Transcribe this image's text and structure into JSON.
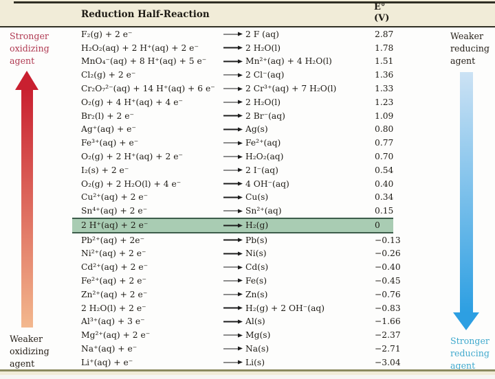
{
  "table": {
    "header": {
      "reaction_col": "Reduction Half-Reaction",
      "e_col_line1": "E°",
      "e_col_line2": "(V)"
    }
  },
  "side_labels": {
    "top_left": "Stronger\noxidizing\nagent",
    "bottom_left": "Weaker\noxidizing\nagent",
    "top_right": "Weaker\nreducing\nagent",
    "bottom_right": "Stronger\nreducing\nagent"
  },
  "icons": {
    "yields_arrow": "long-right-arrow",
    "oxidizing_strength_arrow": "up-arrow-red-gradient",
    "reducing_strength_arrow": "down-arrow-blue-gradient"
  },
  "colors": {
    "text": "#1d1a14",
    "header_bg": "#f1ecd8",
    "rule_dark": "#2f2e23",
    "highlight_row_bg": "#a9ccb3",
    "highlight_row_border": "#3c5c4a",
    "oxidizing_label": "#b03a52",
    "reducing_label": "#3fa9cd",
    "red_arrow_top": "#c92030",
    "red_arrow_bottom": "#f3b88e",
    "blue_arrow_top": "#cce2f4",
    "blue_arrow_bottom": "#2d9fe2",
    "bottom_rule": "#8b8a5f"
  },
  "chart_data": {
    "type": "table",
    "columns": [
      "Reduction Half-Reaction",
      "E° (V)"
    ],
    "rows": [
      {
        "reactant": "F₂(g) + 2 e⁻",
        "product": "2 F (aq)",
        "e_volts": "2.87"
      },
      {
        "reactant": "H₂O₂(aq) + 2 H⁺(aq) + 2 e⁻",
        "product": "2 H₂O(l)",
        "e_volts": "1.78"
      },
      {
        "reactant": "MnO₄⁻(aq) + 8 H⁺(aq) + 5 e⁻",
        "product": "Mn²⁺(aq) + 4 H₂O(l)",
        "e_volts": "1.51"
      },
      {
        "reactant": "Cl₂(g) + 2 e⁻",
        "product": "2 Cl⁻(aq)",
        "e_volts": "1.36"
      },
      {
        "reactant": "Cr₂O₇²⁻(aq) + 14 H⁺(aq) + 6 e⁻",
        "product": "2 Cr³⁺(aq) + 7 H₂O(l)",
        "e_volts": "1.33"
      },
      {
        "reactant": "O₂(g) + 4 H⁺(aq) + 4 e⁻",
        "product": "2 H₂O(l)",
        "e_volts": "1.23"
      },
      {
        "reactant": "Br₂(l) + 2 e⁻",
        "product": "2 Br⁻(aq)",
        "e_volts": "1.09"
      },
      {
        "reactant": "Ag⁺(aq) + e⁻",
        "product": "Ag(s)",
        "e_volts": "0.80"
      },
      {
        "reactant": "Fe³⁺(aq) + e⁻",
        "product": "Fe²⁺(aq)",
        "e_volts": "0.77"
      },
      {
        "reactant": "O₂(g) + 2 H⁺(aq) + 2 e⁻",
        "product": "H₂O₂(aq)",
        "e_volts": "0.70"
      },
      {
        "reactant": "I₂(s) + 2 e⁻",
        "product": "2 I⁻(aq)",
        "e_volts": "0.54"
      },
      {
        "reactant": "O₂(g) + 2 H₂O(l) + 4 e⁻",
        "product": "4 OH⁻(aq)",
        "e_volts": "0.40"
      },
      {
        "reactant": "Cu²⁺(aq) + 2 e⁻",
        "product": "Cu(s)",
        "e_volts": "0.34"
      },
      {
        "reactant": "Sn⁴⁺(aq) + 2 e⁻",
        "product": "Sn²⁺(aq)",
        "e_volts": "0.15"
      },
      {
        "reactant": "2 H⁺(aq) + 2 e⁻",
        "product": "H₂(g)",
        "e_volts": "0",
        "highlighted": true
      },
      {
        "reactant": "Pb²⁺(aq) + 2e⁻",
        "product": "Pb(s)",
        "e_volts": "−0.13"
      },
      {
        "reactant": "Ni²⁺(aq) + 2 e⁻",
        "product": "Ni(s)",
        "e_volts": "−0.26"
      },
      {
        "reactant": "Cd²⁺(aq) + 2 e⁻",
        "product": "Cd(s)",
        "e_volts": "−0.40"
      },
      {
        "reactant": "Fe²⁺(aq) + 2 e⁻",
        "product": "Fe(s)",
        "e_volts": "−0.45"
      },
      {
        "reactant": "Zn²⁺(aq) + 2 e⁻",
        "product": "Zn(s)",
        "e_volts": "−0.76"
      },
      {
        "reactant": "2 H₂O(l) + 2 e⁻",
        "product": "H₂(g) + 2 OH⁻(aq)",
        "e_volts": "−0.83"
      },
      {
        "reactant": "Al³⁺(aq) + 3 e⁻",
        "product": "Al(s)",
        "e_volts": "−1.66"
      },
      {
        "reactant": "Mg²⁺(aq) + 2 e⁻",
        "product": "Mg(s)",
        "e_volts": "−2.37"
      },
      {
        "reactant": "Na⁺(aq) + e⁻",
        "product": "Na(s)",
        "e_volts": "−2.71"
      },
      {
        "reactant": "Li⁺(aq) + e⁻",
        "product": "Li(s)",
        "e_volts": "−3.04"
      }
    ]
  }
}
